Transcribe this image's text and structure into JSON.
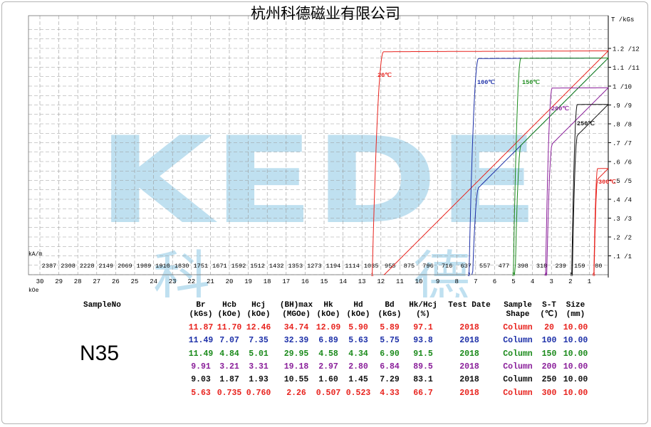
{
  "header": {
    "company_title": "杭州科德磁业有限公司"
  },
  "watermark": {
    "text": "KEDE",
    "chars": [
      "科",
      "德"
    ],
    "color": "#bfe0f0"
  },
  "chart_data": {
    "type": "line",
    "title": "",
    "x_top_unit": "kA/m",
    "x_bottom_unit": "kOe",
    "y_unit": "T /kGs",
    "x_top_ticks": [
      "2387",
      "2308",
      "2228",
      "2149",
      "2069",
      "1989",
      "1910",
      "1830",
      "1751",
      "1671",
      "1592",
      "1512",
      "1432",
      "1353",
      "1273",
      "1194",
      "1114",
      "1035",
      "955",
      "875",
      "796",
      "716",
      "637",
      "557",
      "477",
      "398",
      "318",
      "239",
      "159",
      "80"
    ],
    "x_bottom_ticks": [
      "30",
      "29",
      "28",
      "27",
      "26",
      "25",
      "24",
      "23",
      "22",
      "21",
      "20",
      "19",
      "18",
      "17",
      "16",
      "15",
      "14",
      "13",
      "12",
      "11",
      "10",
      "9",
      "8",
      "7",
      "6",
      "5",
      "4",
      "3",
      "2",
      "1"
    ],
    "y_ticks": [
      ".1 /1",
      ".2 /2",
      ".3 /3",
      ".4 /4",
      ".5 /5",
      ".6 /6",
      ".7 /7",
      ".8 /8",
      ".9 /9",
      "1 /10",
      "1.1 /11",
      "1.2 /12"
    ],
    "xlim": [
      0,
      30
    ],
    "ylim": [
      0,
      12.6
    ],
    "series": [
      {
        "label": "20℃",
        "color": "#e8231e",
        "br": 11.87,
        "hcj": 12.46,
        "knee": 0.6,
        "marker": "1"
      },
      {
        "label": "100℃",
        "color": "#1c2fa8",
        "br": 11.49,
        "hcj": 7.35,
        "knee": 0.5,
        "marker": "2"
      },
      {
        "label": "150℃",
        "color": "#1a8a1a",
        "br": 11.49,
        "hcj": 5.01,
        "knee": 0.4,
        "marker": "3"
      },
      {
        "label": "200℃",
        "color": "#8a1f9a",
        "br": 9.91,
        "hcj": 3.31,
        "knee": 0.35,
        "marker": "4"
      },
      {
        "label": "250℃",
        "color": "#111111",
        "br": 9.03,
        "hcj": 1.93,
        "knee": 0.3,
        "marker": "5"
      },
      {
        "label": "300℃",
        "color": "#e8231e",
        "br": 5.63,
        "hcj": 0.76,
        "knee": 0.2,
        "marker": "6"
      }
    ]
  },
  "table": {
    "sample_no_label": "SampleNo",
    "sample_name": "N35",
    "headers": [
      [
        "Br",
        "(kGs)"
      ],
      [
        "Hcb",
        "(kOe)"
      ],
      [
        "Hcj",
        "(kOe)"
      ],
      [
        "(BH)max",
        "(MGOe)"
      ],
      [
        "Hk",
        "(kOe)"
      ],
      [
        "Hd",
        "(kOe)"
      ],
      [
        "Bd",
        "(kGs)"
      ],
      [
        "Hk/Hcj",
        "(%)"
      ],
      [
        "Test Date",
        ""
      ],
      [
        "Sample",
        "Shape"
      ],
      [
        "S-T",
        "(℃)"
      ],
      [
        "Size",
        "(mm)"
      ]
    ],
    "rows": [
      {
        "color": "#e8231e",
        "cells": [
          "11.87",
          "11.70",
          "12.46",
          "34.74",
          "12.09",
          "5.90",
          "5.89",
          "97.1",
          "2018",
          "Column",
          "20",
          "10.00"
        ]
      },
      {
        "color": "#1c2fa8",
        "cells": [
          "11.49",
          "7.07",
          "7.35",
          "32.39",
          "6.89",
          "5.63",
          "5.75",
          "93.8",
          "2018",
          "Column",
          "100",
          "10.00"
        ]
      },
      {
        "color": "#1a8a1a",
        "cells": [
          "11.49",
          "4.84",
          "5.01",
          "29.95",
          "4.58",
          "4.34",
          "6.90",
          "91.5",
          "2018",
          "Column",
          "150",
          "10.00"
        ]
      },
      {
        "color": "#8a1f9a",
        "cells": [
          "9.91",
          "3.21",
          "3.31",
          "19.18",
          "2.97",
          "2.80",
          "6.84",
          "89.5",
          "2018",
          "Column",
          "200",
          "10.00"
        ]
      },
      {
        "color": "#111111",
        "cells": [
          "9.03",
          "1.87",
          "1.93",
          "10.55",
          "1.60",
          "1.45",
          "7.29",
          "83.1",
          "2018",
          "Column",
          "250",
          "10.00"
        ]
      },
      {
        "color": "#e8231e",
        "cells": [
          "5.63",
          "0.735",
          "0.760",
          "2.26",
          "0.507",
          "0.523",
          "4.33",
          "66.7",
          "2018",
          "Column",
          "300",
          "10.00"
        ]
      }
    ]
  }
}
